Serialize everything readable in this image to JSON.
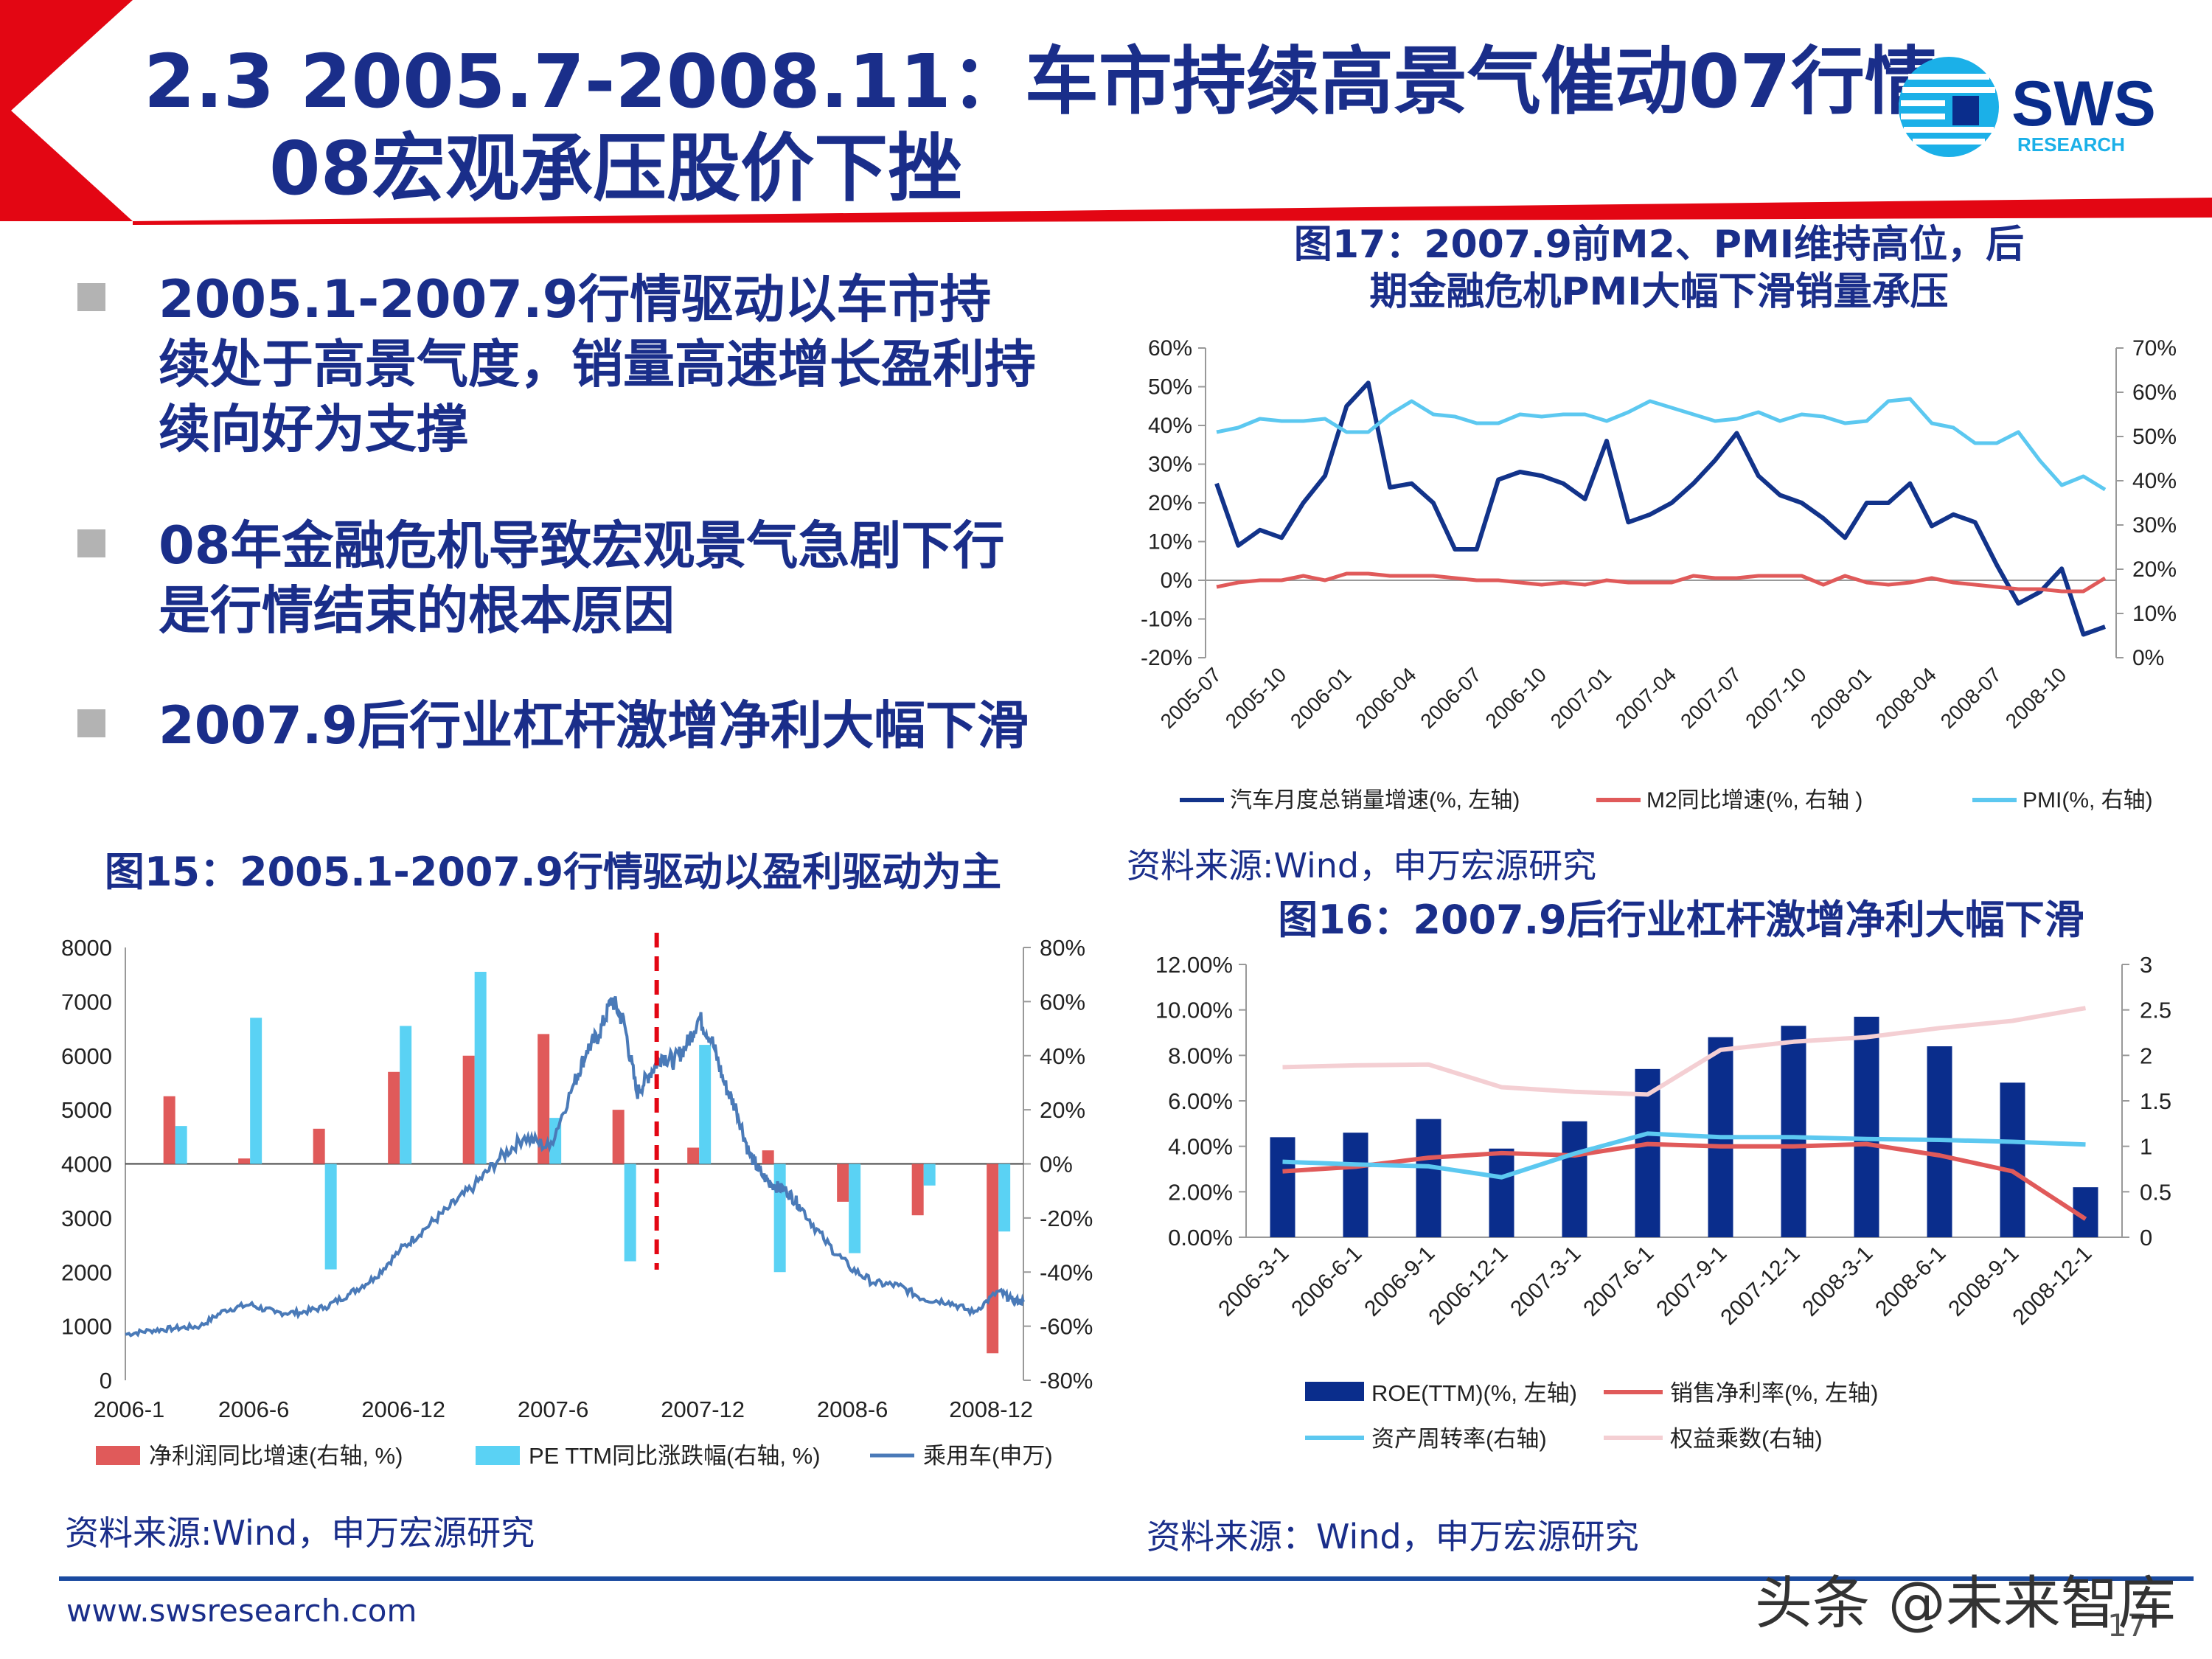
{
  "title": {
    "line1": "2.3 2005.7-2008.11：车市持续高景气催动07行情，",
    "line2": "08宏观承压股价下挫"
  },
  "logo": {
    "text": "SWS",
    "subtext": "RESEARCH"
  },
  "bullets": [
    "2005.1-2007.9行情驱动以车市持续处于高景气度，销量高速增长盈利持续向好为支撑",
    "08年金融危机导致宏观景气急剧下行是行情结束的根本原因",
    "2007.9后行业杠杆激增净利大幅下滑"
  ],
  "fig15": {
    "title": "图15：2005.1-2007.9行情驱动以盈利驱动为主",
    "source": "资料来源:Wind，申万宏源研究"
  },
  "fig17": {
    "title_line1": "图17：2007.9前M2、PMI维持高位，后",
    "title_line2": "期金融危机PMI大幅下滑销量承压",
    "source": "资料来源:Wind，申万宏源研究"
  },
  "fig16": {
    "title": "图16：2007.9后行业杠杆激增净利大幅下滑",
    "source": "资料来源：Wind，申万宏源研究"
  },
  "footer": {
    "url": "www.swsresearch.com",
    "page": "17",
    "watermark": "头条 @未来智库"
  },
  "colors": {
    "navy": "#1a2e8a",
    "red": "#e30613",
    "dark_blue": "#12338a",
    "bar_red": "#e05a5a",
    "bar_cyan": "#5ad2f4",
    "line_blue": "#4a7ab8",
    "line_red": "#e05a5a",
    "line_cyan": "#5cc8f0",
    "line_pink": "#f4cfd3",
    "bar_navy": "#0a2d8c"
  },
  "chart_data": [
    {
      "id": "fig15",
      "type": "bar",
      "left_axis": {
        "min": 0,
        "max": 8000,
        "ticks": [
          "0",
          "1000",
          "2000",
          "3000",
          "4000",
          "5000",
          "6000",
          "7000",
          "8000"
        ]
      },
      "right_axis": {
        "min": -80,
        "max": 80,
        "ticks": [
          "-80%",
          "-60%",
          "-40%",
          "-20%",
          "0%",
          "20%",
          "40%",
          "60%",
          "80%"
        ]
      },
      "x_labels": [
        "2006-1",
        "2006-6",
        "2006-12",
        "2007-6",
        "2007-12",
        "2008-6",
        "2008-12"
      ],
      "x_label_pos": [
        0,
        5,
        11,
        17,
        23,
        29,
        35
      ],
      "x_range": [
        0,
        36
      ],
      "marker_x": 21.3,
      "series": [
        {
          "name": "净利润同比增速(右轴, %)",
          "kind": "bar",
          "axis": "right",
          "x": [
            2,
            5,
            8,
            11,
            14,
            17,
            20,
            23,
            26,
            29,
            32,
            35
          ],
          "values": [
            25,
            2,
            13,
            34,
            40,
            48,
            20,
            6,
            5,
            -14,
            -19,
            -70
          ]
        },
        {
          "name": "PE TTM同比涨跌幅(右轴, %)",
          "kind": "bar",
          "axis": "right",
          "x": [
            2,
            5,
            8,
            11,
            14,
            17,
            20,
            23,
            26,
            29,
            32,
            35
          ],
          "values": [
            14,
            54,
            -39,
            51,
            71,
            17,
            -36,
            44,
            -40,
            -33,
            -8,
            -25
          ]
        },
        {
          "name": "乘用车(申万)",
          "kind": "line",
          "axis": "left",
          "x": [
            0,
            1,
            2,
            3,
            4,
            5,
            6,
            7,
            8,
            9,
            10,
            11,
            12,
            13,
            14,
            15,
            16,
            17,
            18,
            18.5,
            19,
            19.5,
            20,
            20.5,
            21,
            21.5,
            22,
            22.5,
            23,
            23.5,
            24,
            24.5,
            25,
            25.5,
            26,
            26.5,
            27,
            28,
            29,
            30,
            31,
            32,
            33,
            34,
            35,
            35.5,
            36
          ],
          "values": [
            850,
            920,
            960,
            1000,
            1300,
            1400,
            1250,
            1250,
            1350,
            1600,
            1900,
            2400,
            2800,
            3200,
            3600,
            4100,
            4500,
            4300,
            5500,
            6100,
            6400,
            7050,
            6600,
            5300,
            5650,
            6000,
            5900,
            6200,
            6700,
            6300,
            5500,
            5000,
            4200,
            3800,
            3600,
            3500,
            3250,
            2600,
            2100,
            1800,
            1750,
            1500,
            1450,
            1250,
            1650,
            1500,
            1450
          ]
        }
      ]
    },
    {
      "id": "fig17",
      "type": "line",
      "left_axis": {
        "min": -20,
        "max": 60,
        "ticks": [
          "-20%",
          "-10%",
          "0%",
          "10%",
          "20%",
          "30%",
          "40%",
          "50%",
          "60%"
        ]
      },
      "right_axis": {
        "min": 0,
        "max": 70,
        "ticks": [
          "0%",
          "10%",
          "20%",
          "30%",
          "40%",
          "50%",
          "60%",
          "70%"
        ]
      },
      "x_labels": [
        "2005-07",
        "2005-10",
        "2006-01",
        "2006-04",
        "2006-07",
        "2006-10",
        "2007-01",
        "2007-04",
        "2007-07",
        "2007-10",
        "2008-01",
        "2008-04",
        "2008-07",
        "2008-10"
      ],
      "x_range": [
        0,
        41
      ],
      "series": [
        {
          "name": "汽车月度总销量增速(%, 左轴)",
          "axis": "left",
          "values": [
            25,
            9,
            13,
            11,
            20,
            27,
            45,
            51,
            24,
            25,
            20,
            8,
            8,
            26,
            28,
            27,
            25,
            21,
            36,
            15,
            17,
            20,
            25,
            31,
            38,
            27,
            22,
            20,
            16,
            11,
            20,
            20,
            25,
            14,
            17,
            15,
            4,
            -6,
            -3,
            3,
            -14,
            -12
          ]
        },
        {
          "name": "M2同比增速(%, 右轴 )",
          "axis": "right",
          "values": [
            16,
            17,
            17.5,
            17.5,
            18.5,
            17.5,
            19,
            19,
            18.5,
            18.5,
            18.5,
            18,
            17.5,
            17.5,
            17,
            16.5,
            17,
            16.5,
            17.5,
            17,
            17,
            17,
            18.5,
            18,
            18,
            18.5,
            18.5,
            18.5,
            16.5,
            18.5,
            17,
            16.5,
            17,
            18,
            17,
            16.5,
            16,
            15.5,
            15.5,
            15,
            15,
            18
          ]
        },
        {
          "name": "PMI(%, 右轴)",
          "axis": "right",
          "values": [
            51,
            52,
            54,
            53.5,
            53.5,
            54,
            51,
            51,
            55,
            58,
            55,
            54.5,
            53,
            53,
            55,
            54.5,
            55,
            55,
            53.5,
            55.5,
            58,
            56.5,
            55,
            53.5,
            54,
            55.5,
            53.5,
            55,
            54.5,
            53,
            53.5,
            58,
            58.5,
            53,
            52,
            48.5,
            48.5,
            51,
            44.5,
            39,
            41,
            38
          ]
        }
      ]
    },
    {
      "id": "fig16",
      "type": "bar",
      "left_axis": {
        "min": 0,
        "max": 12,
        "ticks": [
          "0.00%",
          "2.00%",
          "4.00%",
          "6.00%",
          "8.00%",
          "10.00%",
          "12.00%"
        ]
      },
      "right_axis": {
        "min": 0,
        "max": 3,
        "ticks": [
          "0",
          "0.5",
          "1",
          "1.5",
          "2",
          "2.5",
          "3"
        ]
      },
      "categories": [
        "2006-3-1",
        "2006-6-1",
        "2006-9-1",
        "2006-12-1",
        "2007-3-1",
        "2007-6-1",
        "2007-9-1",
        "2007-12-1",
        "2008-3-1",
        "2008-6-1",
        "2008-9-1",
        "2008-12-1"
      ],
      "series": [
        {
          "name": "ROE(TTM)(%, 左轴)",
          "kind": "bar",
          "axis": "left",
          "values": [
            4.4,
            4.6,
            5.2,
            3.9,
            5.1,
            7.4,
            8.8,
            9.3,
            9.7,
            8.4,
            6.8,
            2.2
          ]
        },
        {
          "name": "销售净利率(%, 左轴)",
          "kind": "line",
          "axis": "left",
          "values": [
            2.9,
            3.1,
            3.5,
            3.7,
            3.6,
            4.1,
            4.0,
            4.0,
            4.1,
            3.6,
            2.9,
            0.8
          ]
        },
        {
          "name": "资产周转率(右轴)",
          "kind": "line",
          "axis": "right",
          "values": [
            0.83,
            0.8,
            0.78,
            0.66,
            0.92,
            1.14,
            1.1,
            1.1,
            1.08,
            1.07,
            1.05,
            1.02
          ]
        },
        {
          "name": "权益乘数(右轴)",
          "kind": "line",
          "axis": "right",
          "values": [
            1.87,
            1.89,
            1.9,
            1.65,
            1.6,
            1.57,
            2.06,
            2.15,
            2.2,
            2.3,
            2.38,
            2.52
          ]
        }
      ]
    }
  ]
}
